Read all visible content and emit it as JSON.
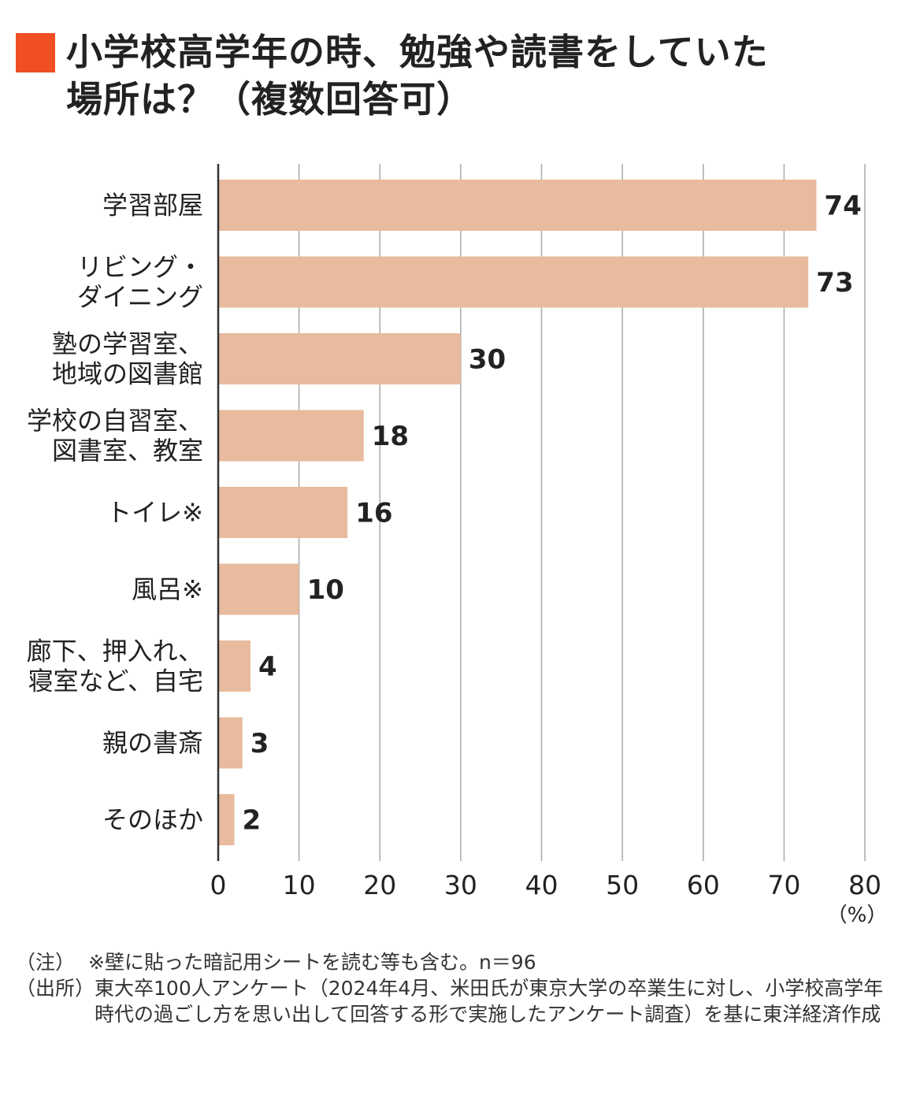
{
  "colors": {
    "accent": "#f04e23",
    "bar": "#e8bb9e",
    "grid": "#a9a9a9",
    "axis": "#333333",
    "text": "#222222"
  },
  "title": "小学校高学年の時、勉強や読書をしていた\n場所は？（複数回答可）",
  "chart_data": {
    "type": "bar",
    "orientation": "horizontal",
    "categories": [
      "学習部屋",
      "リビング・\nダイニング",
      "塾の学習室、\n地域の図書館",
      "学校の自習室、\n図書室、教室",
      "トイレ※",
      "風呂※",
      "廊下、押入れ、\n寝室など、自宅",
      "親の書斎",
      "そのほか"
    ],
    "values": [
      74,
      73,
      30,
      18,
      16,
      10,
      4,
      3,
      2
    ],
    "value_labels": [
      "74",
      "73",
      "30",
      "18",
      "16",
      "10",
      "4",
      "3",
      "2"
    ],
    "xlim": [
      0,
      80
    ],
    "xticks": [
      "0",
      "10",
      "20",
      "30",
      "40",
      "50",
      "60",
      "70",
      "80"
    ],
    "xunit": "（%）",
    "grid": true
  },
  "notes": [
    {
      "label": "（注）",
      "text": "※壁に貼った暗記用シートを読む等も含む。n＝96"
    },
    {
      "label": "（出所）",
      "text": "東大卒100人アンケート（2024年4月、米田氏が東京大学の卒業生に対し、小学校高学年時代の過ごし方を思い出して回答する形で実施したアンケート調査）を基に東洋経済作成"
    }
  ]
}
